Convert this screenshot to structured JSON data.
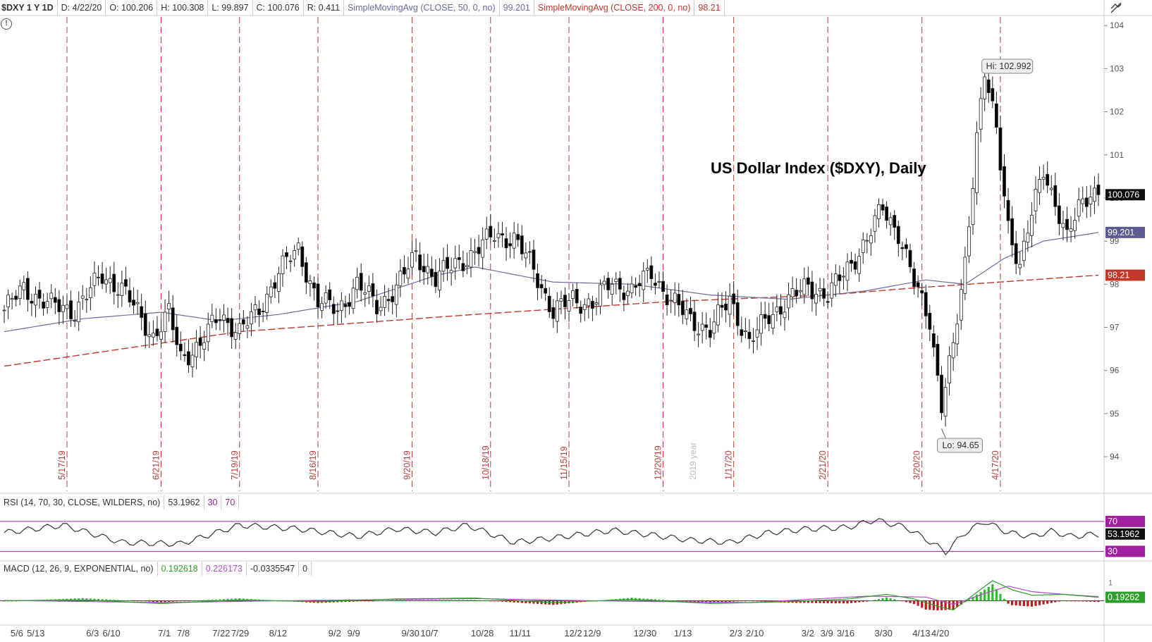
{
  "header": {
    "symbol": "$DXY 1 Y 1D",
    "date": "D: 4/22/20",
    "open": "O: 100.206",
    "high": "H: 100.308",
    "low": "L: 99.897",
    "close": "C: 100.076",
    "range": "R: 0.411",
    "sma50_label": "SimpleMovingAvg (CLOSE, 50, 0, no)",
    "sma50_value": "99.201",
    "sma200_label": "SimpleMovingAvg (CLOSE, 200, 0, no)",
    "sma200_value": "98.21"
  },
  "rsi_header": {
    "label": "RSI (14, 70, 30, CLOSE, WILDERS, no)",
    "value": "53.1962",
    "low": "30",
    "high": "70"
  },
  "macd_header": {
    "label": "MACD (12, 26, 9, EXPONENTIAL, no)",
    "value": "0.192618",
    "avg": "0.226173",
    "diff": "-0.0335547",
    "zero": "0"
  },
  "icons": {
    "info": "info-circle-icon",
    "drawing": "drawing-tools-icon"
  },
  "colors": {
    "up_candle": "#ffffff",
    "down_candle": "#000000",
    "sma50": "#6b6b9e",
    "sma200": "#c0392b",
    "rsi_line": "#333333",
    "rsi_bounds": "#a020a0",
    "macd_line": "#2e9e2e",
    "macd_signal": "#b04fc8",
    "hist_pos": "#2cbf2c",
    "hist_neg": "#b81c1c",
    "period_lines": "#b8403c"
  },
  "chart_data": [
    {
      "type": "candlestick",
      "title": "US Dollar Index ($DXY), Daily",
      "x_ticks": [
        "5/6",
        "5/13",
        "6/3",
        "6/10",
        "7/1",
        "7/8",
        "7/22",
        "7/29",
        "8/12",
        "9/2",
        "9/9",
        "9/30",
        "10/7",
        "10/28",
        "11/11",
        "12/2",
        "12/9",
        "12/30",
        "1/13",
        "2/3",
        "2/10",
        "3/2",
        "3/9",
        "3/16",
        "3/30",
        "4/13",
        "4/20"
      ],
      "y_ticks": [
        94,
        95,
        96,
        97,
        98,
        99,
        100,
        101,
        102,
        103,
        104
      ],
      "ylim": [
        93.2,
        104.2
      ],
      "period_markers": [
        "5/17/19",
        "6/21/19",
        "7/19/19",
        "8/16/19",
        "9/20/19",
        "10/18/19",
        "11/15/19",
        "12/20/19",
        "1/17/20",
        "2/21/20",
        "3/20/20",
        "4/17/20"
      ],
      "year_marker": "2019 year",
      "annotations": {
        "high": "Hi: 102.992",
        "low": "Lo: 94.65"
      },
      "last_close": "100.076",
      "series": [
        {
          "name": "SimpleMovingAvg (CLOSE, 50, 0, no)",
          "last": "99.201"
        },
        {
          "name": "SimpleMovingAvg (CLOSE, 200, 0, no)",
          "last": "98.21"
        }
      ],
      "close_waypoints": [
        [
          0,
          97.4
        ],
        [
          5,
          97.9
        ],
        [
          12,
          97.5
        ],
        [
          18,
          97.4
        ],
        [
          25,
          98.2
        ],
        [
          30,
          97.9
        ],
        [
          35,
          97.2
        ],
        [
          38,
          96.8
        ],
        [
          42,
          97.3
        ],
        [
          45,
          96.3
        ],
        [
          50,
          96.6
        ],
        [
          55,
          97.3
        ],
        [
          60,
          96.9
        ],
        [
          65,
          97.4
        ],
        [
          70,
          98.3
        ],
        [
          75,
          98.8
        ],
        [
          80,
          97.6
        ],
        [
          85,
          97.4
        ],
        [
          90,
          98.0
        ],
        [
          95,
          97.5
        ],
        [
          100,
          97.9
        ],
        [
          105,
          98.7
        ],
        [
          110,
          98.1
        ],
        [
          115,
          98.5
        ],
        [
          120,
          98.7
        ],
        [
          125,
          99.2
        ],
        [
          130,
          99.0
        ],
        [
          135,
          98.4
        ],
        [
          140,
          97.3
        ],
        [
          145,
          97.7
        ],
        [
          150,
          97.5
        ],
        [
          155,
          98.1
        ],
        [
          160,
          97.8
        ],
        [
          165,
          98.3
        ],
        [
          170,
          97.6
        ],
        [
          175,
          97.2
        ],
        [
          180,
          96.9
        ],
        [
          185,
          97.7
        ],
        [
          190,
          96.6
        ],
        [
          195,
          97.3
        ],
        [
          200,
          97.6
        ],
        [
          205,
          98.0
        ],
        [
          210,
          97.7
        ],
        [
          215,
          98.4
        ],
        [
          220,
          99.0
        ],
        [
          224,
          99.8
        ],
        [
          228,
          99.2
        ],
        [
          232,
          98.0
        ],
        [
          236,
          97.2
        ],
        [
          239,
          95.2
        ],
        [
          242,
          96.5
        ],
        [
          245,
          98.5
        ],
        [
          248,
          101.5
        ],
        [
          250,
          102.9
        ],
        [
          253,
          101.5
        ],
        [
          256,
          99.4
        ],
        [
          259,
          98.4
        ],
        [
          262,
          99.6
        ],
        [
          265,
          100.7
        ],
        [
          268,
          99.9
        ],
        [
          271,
          99.0
        ],
        [
          274,
          99.8
        ],
        [
          277,
          100.2
        ],
        [
          279,
          100.08
        ]
      ],
      "sma50_waypoints": [
        [
          0,
          96.9
        ],
        [
          20,
          97.2
        ],
        [
          40,
          97.35
        ],
        [
          55,
          97.15
        ],
        [
          70,
          97.3
        ],
        [
          90,
          97.6
        ],
        [
          110,
          98.2
        ],
        [
          120,
          98.4
        ],
        [
          140,
          98.05
        ],
        [
          160,
          98.0
        ],
        [
          180,
          97.75
        ],
        [
          200,
          97.65
        ],
        [
          220,
          97.85
        ],
        [
          235,
          98.1
        ],
        [
          245,
          98.0
        ],
        [
          255,
          98.6
        ],
        [
          265,
          99.0
        ],
        [
          279,
          99.201
        ]
      ],
      "sma200_waypoints": [
        [
          0,
          96.1
        ],
        [
          60,
          96.9
        ],
        [
          120,
          97.3
        ],
        [
          170,
          97.6
        ],
        [
          210,
          97.75
        ],
        [
          230,
          97.9
        ],
        [
          279,
          98.21
        ]
      ],
      "rsi": {
        "bounds": [
          30,
          70
        ],
        "last": "53.1962",
        "waypoints": [
          [
            0,
            55
          ],
          [
            15,
            65
          ],
          [
            30,
            42
          ],
          [
            45,
            40
          ],
          [
            60,
            65
          ],
          [
            75,
            60
          ],
          [
            90,
            50
          ],
          [
            100,
            60
          ],
          [
            110,
            55
          ],
          [
            118,
            65
          ],
          [
            130,
            42
          ],
          [
            140,
            48
          ],
          [
            155,
            58
          ],
          [
            165,
            52
          ],
          [
            175,
            45
          ],
          [
            185,
            42
          ],
          [
            195,
            55
          ],
          [
            205,
            60
          ],
          [
            215,
            62
          ],
          [
            222,
            72
          ],
          [
            230,
            62
          ],
          [
            237,
            40
          ],
          [
            240,
            29
          ],
          [
            245,
            55
          ],
          [
            250,
            70
          ],
          [
            256,
            55
          ],
          [
            262,
            50
          ],
          [
            267,
            57
          ],
          [
            272,
            50
          ],
          [
            279,
            53
          ]
        ]
      },
      "macd": {
        "last": "0.19262",
        "waypoints": [
          [
            0,
            0.0
          ],
          [
            20,
            0.05
          ],
          [
            40,
            -0.15
          ],
          [
            60,
            0.05
          ],
          [
            80,
            -0.05
          ],
          [
            100,
            0.1
          ],
          [
            120,
            0.15
          ],
          [
            140,
            -0.1
          ],
          [
            160,
            0.08
          ],
          [
            180,
            -0.15
          ],
          [
            200,
            -0.05
          ],
          [
            215,
            0.1
          ],
          [
            225,
            0.35
          ],
          [
            232,
            0.1
          ],
          [
            238,
            -0.3
          ],
          [
            242,
            -0.5
          ],
          [
            247,
            0.3
          ],
          [
            252,
            1.1
          ],
          [
            257,
            0.6
          ],
          [
            262,
            0.3
          ],
          [
            270,
            0.35
          ],
          [
            279,
            0.19
          ]
        ],
        "signal_waypoints": [
          [
            0,
            0.02
          ],
          [
            40,
            -0.1
          ],
          [
            70,
            0.0
          ],
          [
            120,
            0.12
          ],
          [
            150,
            0.0
          ],
          [
            190,
            -0.1
          ],
          [
            220,
            0.25
          ],
          [
            235,
            0.2
          ],
          [
            242,
            -0.2
          ],
          [
            250,
            0.4
          ],
          [
            256,
            0.8
          ],
          [
            262,
            0.5
          ],
          [
            270,
            0.35
          ],
          [
            279,
            0.23
          ]
        ]
      }
    }
  ]
}
